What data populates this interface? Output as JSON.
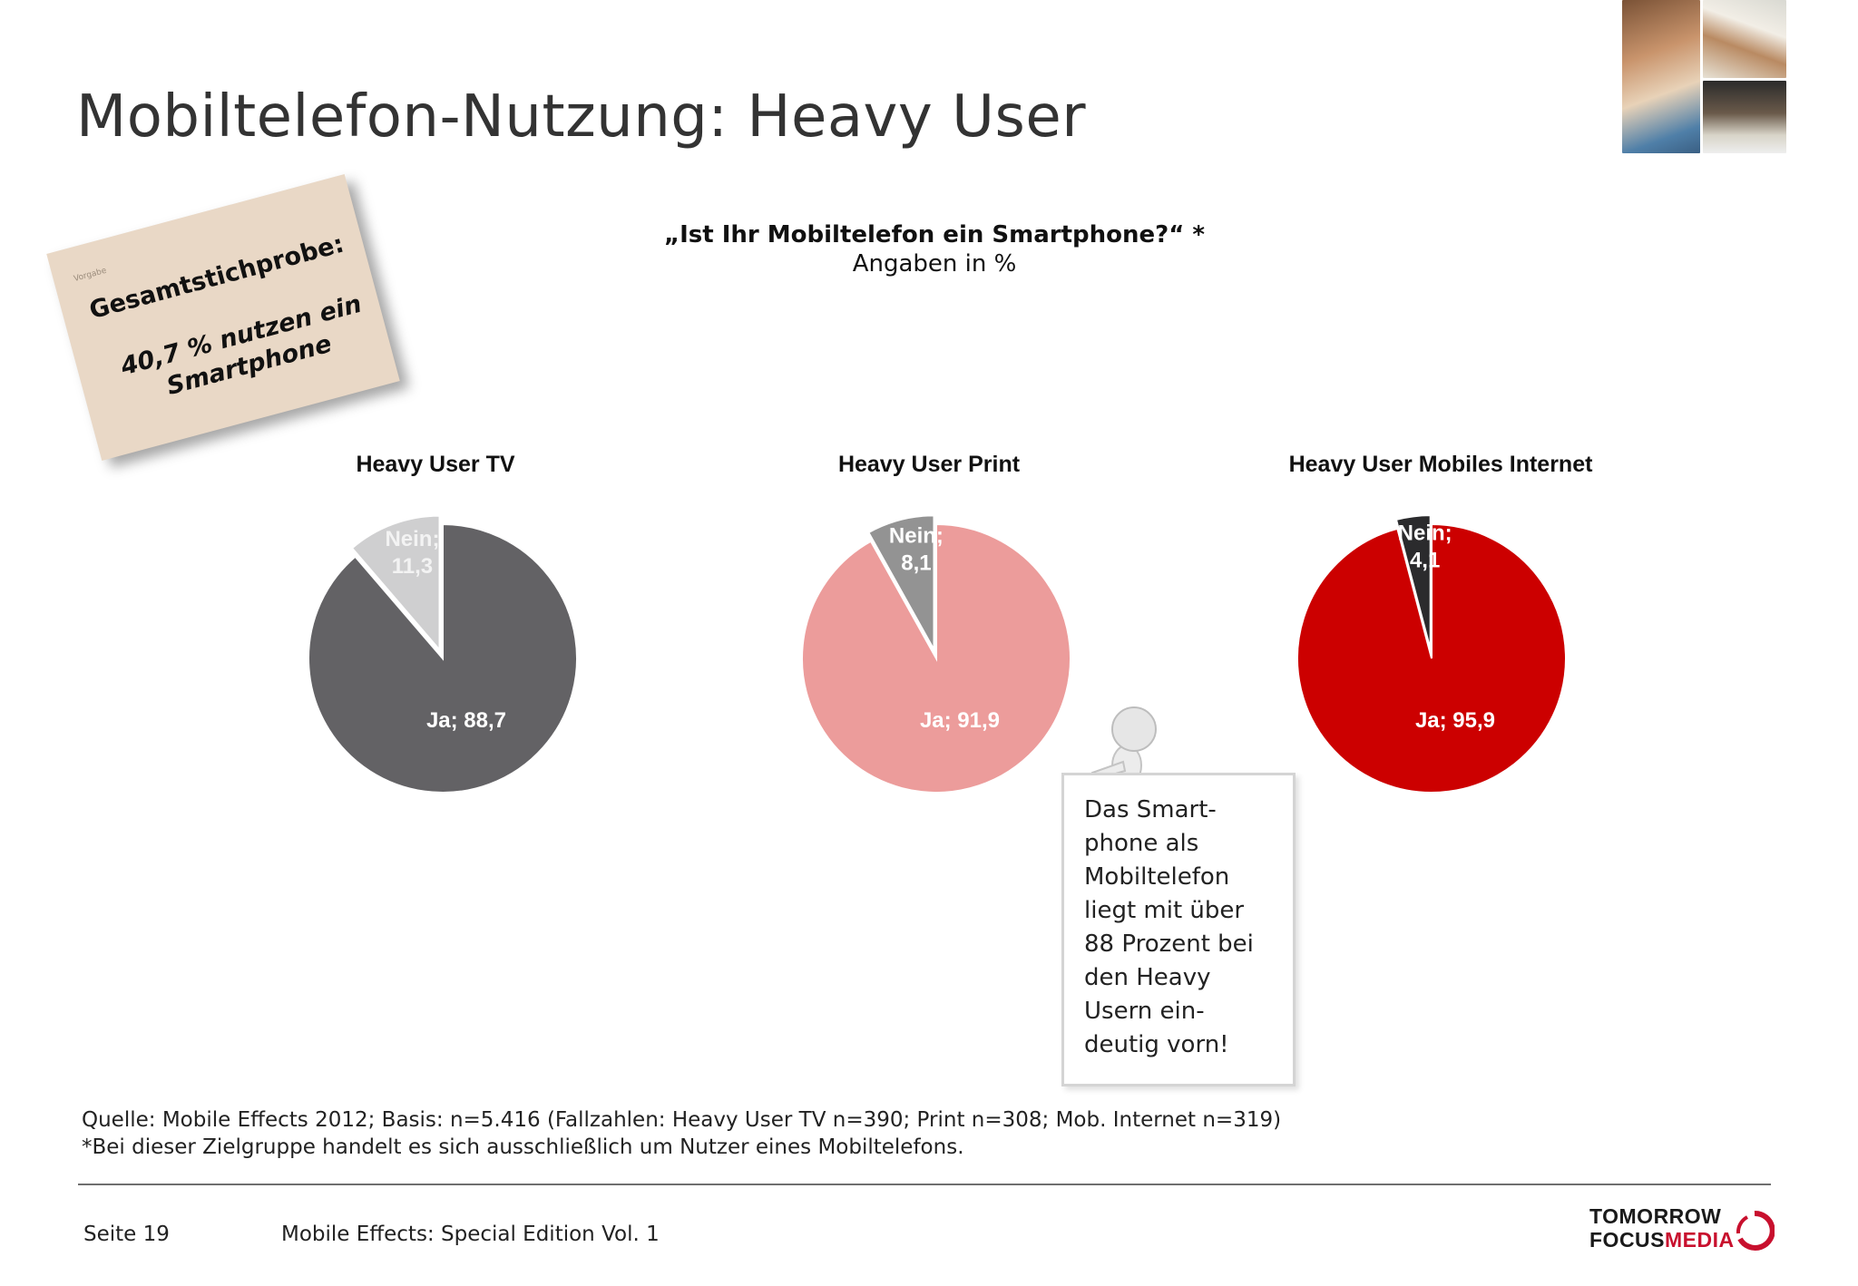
{
  "page": {
    "title": "Mobiltelefon-Nutzung: Heavy User"
  },
  "note_card": {
    "tiny_text": "Vorgabe",
    "heading": "Gesamtstichprobe:",
    "body": "40,7 % nutzen ein Smartphone"
  },
  "question": "„Ist Ihr Mobiltelefon ein Smartphone?“ *",
  "unit_note": "Angaben in %",
  "chart_data": [
    {
      "type": "pie",
      "title": "Heavy User TV",
      "labels": [
        "Ja",
        "Nein"
      ],
      "values": [
        88.7,
        11.3
      ],
      "data_labels": [
        "Ja; 88,7",
        "Nein; 11,3"
      ],
      "colors": [
        "#636265",
        "#cfcfd0"
      ],
      "label_colors": [
        "#ffffff",
        "#f3f3f3"
      ]
    },
    {
      "type": "pie",
      "title": "Heavy User Print",
      "labels": [
        "Ja",
        "Nein"
      ],
      "values": [
        91.9,
        8.1
      ],
      "data_labels": [
        "Ja; 91,9",
        "Nein; 8,1"
      ],
      "colors": [
        "#ec9c9b",
        "#939393"
      ],
      "label_colors": [
        "#ffffff",
        "#ffffff"
      ]
    },
    {
      "type": "pie",
      "title": "Heavy User Mobiles Internet",
      "labels": [
        "Ja",
        "Nein"
      ],
      "values": [
        95.9,
        4.1
      ],
      "data_labels": [
        "Ja; 95,9",
        "Nein; 4,1"
      ],
      "colors": [
        "#cc0000",
        "#2b2b2d"
      ],
      "label_colors": [
        "#ffffff",
        "#ffffff"
      ]
    }
  ],
  "callout": {
    "text": "Das Smart-\nphone als\nMobiltelefon\nliegt mit über\n88 Prozent bei\nden Heavy\nUsern ein-\ndeutig vorn!"
  },
  "footer": {
    "source": "Quelle: Mobile Effects 2012; Basis: n=5.416 (Fallzahlen: Heavy User TV n=390; Print n=308; Mob. Internet n=319)",
    "footnote": "*Bei dieser Zielgruppe handelt es sich ausschließlich um Nutzer eines Mobiltelefons.",
    "page_number": "Seite 19",
    "publication": "Mobile Effects: Special Edition Vol. 1"
  },
  "logo": {
    "line1": "TOMORROW",
    "focus": "FOCUS",
    "media": "MEDIA"
  },
  "colors": {
    "brand_red": "#c8102e",
    "note_card": "#e9d8c6"
  }
}
